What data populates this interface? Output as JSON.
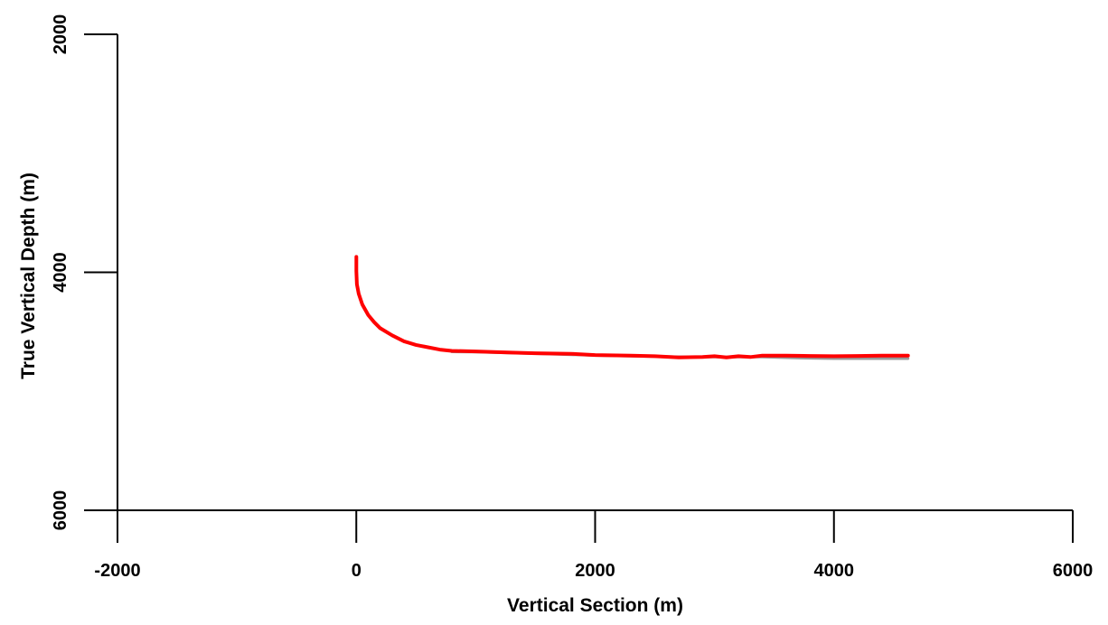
{
  "chart_data": {
    "type": "line",
    "title": "",
    "xlabel": "Vertical Section (m)",
    "ylabel": "True Vertical Depth (m)",
    "xlim": [
      -2000,
      6000
    ],
    "ylim": [
      2000,
      6000
    ],
    "y_inverted": true,
    "grid": false,
    "x_ticks": [
      "-2000",
      "0",
      "2000",
      "4000",
      "6000"
    ],
    "x_tick_values": [
      -2000,
      0,
      2000,
      4000,
      6000
    ],
    "y_ticks": [
      "2000",
      "4000",
      "6000"
    ],
    "y_tick_values": [
      2000,
      4000,
      6000
    ],
    "series": [
      {
        "color": "#ff0000",
        "x": [
          0,
          0,
          5,
          20,
          50,
          100,
          150,
          200,
          300,
          400,
          500,
          600,
          700,
          800,
          1000,
          1300,
          1500,
          1800,
          2000,
          2300,
          2500,
          2700,
          2900,
          3000,
          3100,
          3200,
          3300,
          3400,
          3600,
          3800,
          4000,
          4200,
          4400,
          4620
        ],
        "y": [
          3870,
          3990,
          4100,
          4180,
          4270,
          4360,
          4420,
          4470,
          4530,
          4580,
          4610,
          4630,
          4650,
          4660,
          4665,
          4675,
          4680,
          4685,
          4695,
          4700,
          4705,
          4715,
          4712,
          4705,
          4715,
          4705,
          4712,
          4700,
          4700,
          4703,
          4705,
          4703,
          4700,
          4700
        ]
      },
      {
        "color": "#999999",
        "x": [
          800,
          1000,
          1500,
          2000,
          2500,
          3000,
          3400,
          3700,
          4000,
          4300,
          4620
        ],
        "y": [
          4668,
          4670,
          4683,
          4698,
          4708,
          4712,
          4712,
          4720,
          4725,
          4725,
          4725
        ]
      }
    ]
  }
}
